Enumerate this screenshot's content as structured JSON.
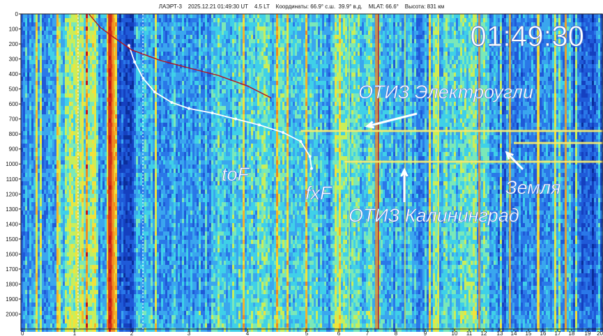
{
  "header": {
    "satellite": "ЛАЭРТ-3",
    "datetime": "2025.12.21 01:49:30 UT",
    "local_time": "4.5 LT",
    "coords_label": "Координаты:",
    "lat": "66.9° с.ш.",
    "lon": "39.9° в.д.",
    "mlat": "MLAT: 66.6°",
    "altitude": "Высота: 831 км"
  },
  "clock": "01:49:30",
  "annotations": {
    "electrougli": "ОТИЗ Электроугли",
    "kaliningrad": "ОТИЗ Калининград",
    "zemlya": "Земля",
    "tof": "toF",
    "fxf": "fxF"
  },
  "colors": {
    "background_blue": "#1f5ad8",
    "deep_blue": "#0b2e9c",
    "cyan": "#3fd0e8",
    "yellow": "#f2e23a",
    "orange": "#f08a1e",
    "red": "#c8141a",
    "trace_white": "#ffffff",
    "trace_red": "#b4141e"
  },
  "chart_data": {
    "type": "heatmap",
    "description_axis": "frequency (x) vs virtual height (y)",
    "x_ticks": [
      "0",
      "1",
      "2",
      "3",
      "4",
      "5",
      "6",
      "7",
      "8",
      "9",
      "10",
      "11",
      "12",
      "13",
      "14",
      "15",
      "16",
      "17",
      "18",
      "19",
      "20"
    ],
    "x_tick_values": [
      0,
      1,
      2,
      3,
      4,
      5,
      6,
      7,
      8,
      9,
      10,
      11,
      12,
      13,
      14,
      15,
      16,
      17,
      18,
      19,
      20
    ],
    "y_ticks": [
      "0",
      "100",
      "200",
      "300",
      "400",
      "500",
      "600",
      "700",
      "800",
      "900",
      "1000",
      "1100",
      "1200",
      "1300",
      "1400",
      "1500",
      "1600",
      "1700",
      "1800",
      "1900",
      "2000"
    ],
    "y_tick_values": [
      0,
      100,
      200,
      300,
      400,
      500,
      600,
      700,
      800,
      900,
      1000,
      1100,
      1200,
      1300,
      1400,
      1500,
      1600,
      1700,
      1800,
      1900,
      2000
    ],
    "ylim": [
      0,
      2100
    ],
    "x_scale": "nonlinear (compressed above 6)",
    "traces": [
      {
        "name": "white_trace",
        "x": [
          1.95,
          2.05,
          2.2,
          2.4,
          2.7,
          3.0,
          3.4,
          3.8,
          4.2,
          4.6,
          4.9,
          5.1,
          5.15
        ],
        "y": [
          210,
          320,
          430,
          520,
          590,
          630,
          660,
          700,
          740,
          790,
          850,
          950,
          1030
        ]
      },
      {
        "name": "red_trace",
        "x": [
          1.25,
          1.45,
          1.7,
          2.0,
          2.5,
          3.0,
          3.5,
          4.0,
          4.4
        ],
        "y": [
          0,
          90,
          160,
          240,
          310,
          360,
          410,
          480,
          560
        ]
      }
    ],
    "horizontal_lines": [
      {
        "name": "ОТИЗ Электроугли",
        "y": 780,
        "x_from": 4.9,
        "x_to": 20
      },
      {
        "name": "ОТИЗ Калининград",
        "y": 985,
        "x_from": 6.2,
        "x_to": 20
      },
      {
        "name": "Земля",
        "y": 860,
        "x_from": 14.0,
        "x_to": 20
      }
    ]
  }
}
